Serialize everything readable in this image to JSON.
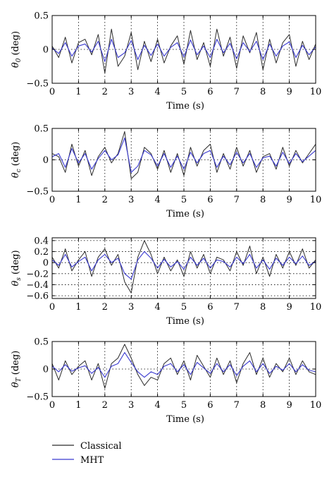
{
  "legend": [
    {
      "label": "Classical",
      "color": "#2b2b2b"
    },
    {
      "label": "MHT",
      "color": "#3a3ad0"
    }
  ],
  "chart_data": [
    {
      "type": "line",
      "ylabel_symbol": "θ",
      "ylabel_sub": "0",
      "ylabel_unit": " (deg)",
      "xlabel": "Time (s)",
      "xlim": [
        0,
        10
      ],
      "ylim": [
        -0.5,
        0.5
      ],
      "xticks": [
        0,
        1,
        2,
        3,
        4,
        5,
        6,
        7,
        8,
        9,
        10
      ],
      "yticks": [
        -0.5,
        0,
        0.5
      ],
      "ytick_labels": [
        "−0.5",
        "0",
        "0.5"
      ],
      "grid": "dotted",
      "x": [
        0,
        0.25,
        0.5,
        0.75,
        1,
        1.25,
        1.5,
        1.75,
        2,
        2.25,
        2.5,
        2.75,
        3,
        3.25,
        3.5,
        3.75,
        4,
        4.25,
        4.5,
        4.75,
        5,
        5.25,
        5.5,
        5.75,
        6,
        6.25,
        6.5,
        6.75,
        7,
        7.25,
        7.5,
        7.75,
        8,
        8.25,
        8.5,
        8.75,
        9,
        9.25,
        9.5,
        9.75,
        10
      ],
      "series": [
        {
          "name": "Classical",
          "values": [
            0.05,
            -0.12,
            0.18,
            -0.2,
            0.1,
            0.15,
            -0.08,
            0.22,
            -0.35,
            0.3,
            -0.25,
            -0.1,
            0.25,
            -0.3,
            0.12,
            -0.18,
            0.15,
            -0.2,
            0.05,
            0.2,
            -0.22,
            0.28,
            -0.15,
            0.1,
            -0.25,
            0.3,
            -0.1,
            0.18,
            -0.28,
            0.2,
            -0.05,
            0.25,
            -0.3,
            0.15,
            -0.2,
            0.1,
            0.22,
            -0.25,
            0.12,
            -0.15,
            0.08
          ]
        },
        {
          "name": "MHT",
          "values": [
            0.02,
            -0.06,
            0.1,
            -0.1,
            0.05,
            0.08,
            -0.04,
            0.12,
            -0.18,
            0.15,
            -0.12,
            -0.05,
            0.13,
            -0.15,
            0.06,
            -0.09,
            0.08,
            -0.1,
            0.03,
            0.1,
            -0.11,
            0.14,
            -0.08,
            0.05,
            -0.12,
            0.15,
            -0.05,
            0.09,
            -0.14,
            0.1,
            -0.03,
            0.12,
            -0.15,
            0.08,
            -0.1,
            0.05,
            0.11,
            -0.12,
            0.06,
            -0.08,
            0.04
          ]
        }
      ]
    },
    {
      "type": "line",
      "ylabel_symbol": "θ",
      "ylabel_sub": "c",
      "ylabel_unit": " (deg)",
      "xlabel": "Time (s)",
      "xlim": [
        0,
        10
      ],
      "ylim": [
        -0.5,
        0.5
      ],
      "xticks": [
        0,
        1,
        2,
        3,
        4,
        5,
        6,
        7,
        8,
        9,
        10
      ],
      "yticks": [
        -0.5,
        0,
        0.5
      ],
      "ytick_labels": [
        "−0.5",
        "0",
        "0.5"
      ],
      "grid": "dotted",
      "x": [
        0,
        0.25,
        0.5,
        0.75,
        1,
        1.25,
        1.5,
        1.75,
        2,
        2.25,
        2.5,
        2.75,
        3,
        3.25,
        3.5,
        3.75,
        4,
        4.25,
        4.5,
        4.75,
        5,
        5.25,
        5.5,
        5.75,
        6,
        6.25,
        6.5,
        6.75,
        7,
        7.25,
        7.5,
        7.75,
        8,
        8.25,
        8.5,
        8.75,
        9,
        9.25,
        9.5,
        9.75,
        10
      ],
      "series": [
        {
          "name": "Classical",
          "values": [
            0.1,
            0.05,
            -0.2,
            0.25,
            -0.1,
            0.15,
            -0.25,
            0.05,
            0.2,
            -0.05,
            0.1,
            0.45,
            -0.3,
            -0.2,
            0.2,
            0.1,
            -0.15,
            0.15,
            -0.2,
            0.1,
            -0.25,
            0.2,
            -0.1,
            0.15,
            0.25,
            -0.2,
            0.1,
            -0.15,
            0.2,
            -0.1,
            0.15,
            -0.2,
            0.05,
            0.1,
            -0.15,
            0.2,
            -0.1,
            0.15,
            -0.05,
            0.1,
            0.25
          ]
        },
        {
          "name": "MHT",
          "values": [
            0.05,
            0.1,
            -0.12,
            0.18,
            -0.05,
            0.1,
            -0.15,
            0.02,
            0.15,
            0.0,
            0.08,
            0.35,
            -0.2,
            -0.1,
            0.15,
            0.08,
            -0.1,
            0.1,
            -0.12,
            0.06,
            -0.15,
            0.12,
            -0.05,
            0.1,
            0.15,
            -0.12,
            0.06,
            -0.08,
            0.12,
            -0.05,
            0.1,
            -0.12,
            0.03,
            0.06,
            -0.1,
            0.12,
            -0.06,
            0.1,
            -0.03,
            0.06,
            0.15
          ]
        }
      ]
    },
    {
      "type": "line",
      "ylabel_symbol": "θ",
      "ylabel_sub": "s",
      "ylabel_unit": " (deg)",
      "xlabel": "Time (s)",
      "xlim": [
        0,
        10
      ],
      "ylim": [
        -0.65,
        0.45
      ],
      "xticks": [
        0,
        1,
        2,
        3,
        4,
        5,
        6,
        7,
        8,
        9,
        10
      ],
      "yticks": [
        -0.6,
        -0.4,
        -0.2,
        0,
        0.2,
        0.4
      ],
      "ytick_labels": [
        "−0.6",
        "−0.4",
        "−0.2",
        "0",
        "0.2",
        "0.4"
      ],
      "grid": "dotted",
      "x": [
        0,
        0.25,
        0.5,
        0.75,
        1,
        1.25,
        1.5,
        1.75,
        2,
        2.25,
        2.5,
        2.75,
        3,
        3.25,
        3.5,
        3.75,
        4,
        4.25,
        4.5,
        4.75,
        5,
        5.25,
        5.5,
        5.75,
        6,
        6.25,
        6.5,
        6.75,
        7,
        7.25,
        7.5,
        7.75,
        8,
        8.25,
        8.5,
        8.75,
        9,
        9.25,
        9.5,
        9.75,
        10
      ],
      "series": [
        {
          "name": "Classical",
          "values": [
            0.1,
            -0.1,
            0.25,
            -0.15,
            0.05,
            0.2,
            -0.25,
            0.1,
            0.25,
            -0.05,
            0.15,
            -0.35,
            -0.55,
            0.1,
            0.4,
            0.15,
            -0.2,
            0.1,
            -0.15,
            0.05,
            -0.25,
            0.2,
            -0.1,
            0.15,
            -0.2,
            0.1,
            0.05,
            -0.15,
            0.2,
            -0.05,
            0.3,
            -0.2,
            0.1,
            -0.25,
            0.15,
            -0.1,
            0.2,
            -0.05,
            0.25,
            -0.1,
            0.05
          ]
        },
        {
          "name": "MHT",
          "values": [
            0.05,
            -0.05,
            0.15,
            -0.08,
            0.02,
            0.1,
            -0.15,
            0.05,
            0.15,
            0.0,
            0.08,
            -0.2,
            -0.3,
            0.05,
            0.2,
            0.08,
            -0.1,
            0.06,
            -0.08,
            0.02,
            -0.12,
            0.1,
            -0.05,
            0.08,
            -0.1,
            0.05,
            0.02,
            -0.08,
            0.1,
            -0.02,
            0.15,
            -0.1,
            0.05,
            -0.12,
            0.08,
            -0.05,
            0.1,
            -0.02,
            0.12,
            -0.05,
            0.02
          ]
        }
      ]
    },
    {
      "type": "line",
      "ylabel_symbol": "θ",
      "ylabel_sub": "T",
      "ylabel_unit": " (deg)",
      "xlabel": "Time (s)",
      "xlim": [
        0,
        10
      ],
      "ylim": [
        -0.5,
        0.5
      ],
      "xticks": [
        0,
        1,
        2,
        3,
        4,
        5,
        6,
        7,
        8,
        9,
        10
      ],
      "yticks": [
        -0.5,
        0,
        0.5
      ],
      "ytick_labels": [
        "−0.5",
        "0",
        "0.5"
      ],
      "grid": "dotted",
      "x": [
        0,
        0.25,
        0.5,
        0.75,
        1,
        1.25,
        1.5,
        1.75,
        2,
        2.25,
        2.5,
        2.75,
        3,
        3.25,
        3.5,
        3.75,
        4,
        4.25,
        4.5,
        4.75,
        5,
        5.25,
        5.5,
        5.75,
        6,
        6.25,
        6.5,
        6.75,
        7,
        7.25,
        7.5,
        7.75,
        8,
        8.25,
        8.5,
        8.75,
        9,
        9.25,
        9.5,
        9.75,
        10
      ],
      "series": [
        {
          "name": "Classical",
          "values": [
            0.1,
            -0.2,
            0.15,
            -0.1,
            0.05,
            0.15,
            -0.2,
            0.1,
            -0.35,
            0.1,
            0.2,
            0.45,
            0.2,
            -0.1,
            -0.3,
            -0.15,
            -0.2,
            0.1,
            0.2,
            -0.1,
            0.15,
            -0.2,
            0.25,
            0.05,
            -0.15,
            0.2,
            -0.1,
            0.15,
            -0.25,
            0.1,
            0.3,
            -0.1,
            0.2,
            -0.15,
            0.1,
            -0.05,
            0.2,
            -0.1,
            0.15,
            -0.05,
            -0.1
          ]
        },
        {
          "name": "MHT",
          "values": [
            0.05,
            -0.05,
            0.08,
            -0.04,
            0.02,
            0.06,
            -0.08,
            0.03,
            -0.15,
            0.05,
            0.1,
            0.3,
            0.12,
            -0.05,
            -0.15,
            -0.05,
            -0.1,
            0.05,
            0.1,
            -0.05,
            0.08,
            -0.1,
            0.12,
            0.02,
            -0.08,
            0.1,
            -0.05,
            0.08,
            -0.12,
            0.05,
            0.15,
            -0.05,
            0.1,
            -0.08,
            0.05,
            -0.02,
            0.1,
            -0.05,
            0.08,
            -0.02,
            -0.05
          ]
        }
      ]
    }
  ]
}
